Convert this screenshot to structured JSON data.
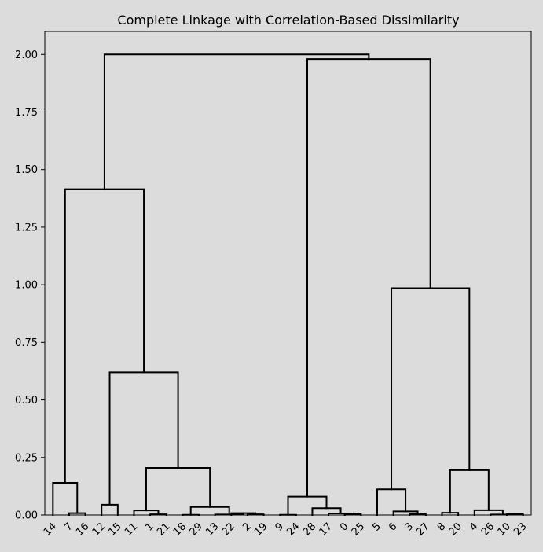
{
  "chart_data": {
    "type": "dendrogram",
    "title": "Complete Linkage with Correlation-Based Dissimilarity",
    "xlabel": "",
    "ylabel": "",
    "ylim": [
      0,
      2.1
    ],
    "yticks": [
      0.0,
      0.25,
      0.5,
      0.75,
      1.0,
      1.25,
      1.5,
      1.75,
      2.0
    ],
    "ytick_labels": [
      "0.00",
      "0.25",
      "0.50",
      "0.75",
      "1.00",
      "1.25",
      "1.50",
      "1.75",
      "2.00"
    ],
    "grid": false,
    "leaf_order": [
      "14",
      "7",
      "16",
      "12",
      "15",
      "11",
      "1",
      "21",
      "18",
      "29",
      "13",
      "22",
      "2",
      "19",
      "9",
      "24",
      "28",
      "17",
      "0",
      "25",
      "5",
      "6",
      "3",
      "27",
      "8",
      "20",
      "4",
      "26",
      "10",
      "23"
    ],
    "merges": [
      {
        "left": [
          1
        ],
        "right": [
          2
        ],
        "height": 0.008
      },
      {
        "left": [
          0
        ],
        "right": [
          1,
          2
        ],
        "height": 0.14
      },
      {
        "left": [
          3
        ],
        "right": [
          4
        ],
        "height": 0.045
      },
      {
        "left": [
          6
        ],
        "right": [
          7
        ],
        "height": 0.003
      },
      {
        "left": [
          5
        ],
        "right": [
          6,
          7
        ],
        "height": 0.02
      },
      {
        "left": [
          8
        ],
        "right": [
          9
        ],
        "height": 0.001
      },
      {
        "left": [
          12
        ],
        "right": [
          13
        ],
        "height": 0.003
      },
      {
        "left": [
          11
        ],
        "right": [
          12,
          13
        ],
        "height": 0.008
      },
      {
        "left": [
          10
        ],
        "right": [
          11,
          12,
          13
        ],
        "height": 0.002
      },
      {
        "left": [
          8,
          9
        ],
        "right": [
          10,
          11,
          12,
          13
        ],
        "height": 0.035
      },
      {
        "left": [
          5,
          6,
          7
        ],
        "right": [
          8,
          9,
          10,
          11,
          12,
          13
        ],
        "height": 0.205
      },
      {
        "left": [
          3,
          4
        ],
        "right": [
          5,
          6,
          7,
          8,
          9,
          10,
          11,
          12,
          13
        ],
        "height": 0.62
      },
      {
        "left": [
          0,
          1,
          2
        ],
        "right": [
          3,
          4,
          5,
          6,
          7,
          8,
          9,
          10,
          11,
          12,
          13
        ],
        "height": 1.415
      },
      {
        "left": [
          14
        ],
        "right": [
          15
        ],
        "height": 0.001
      },
      {
        "left": [
          18
        ],
        "right": [
          19
        ],
        "height": 0.004
      },
      {
        "left": [
          17
        ],
        "right": [
          18,
          19
        ],
        "height": 0.007
      },
      {
        "left": [
          16
        ],
        "right": [
          17,
          18,
          19
        ],
        "height": 0.03
      },
      {
        "left": [
          14,
          15
        ],
        "right": [
          16,
          17,
          18,
          19
        ],
        "height": 0.08
      },
      {
        "left": [
          22
        ],
        "right": [
          23
        ],
        "height": 0.004
      },
      {
        "left": [
          21
        ],
        "right": [
          22,
          23
        ],
        "height": 0.016
      },
      {
        "left": [
          20
        ],
        "right": [
          21,
          22,
          23
        ],
        "height": 0.112
      },
      {
        "left": [
          24
        ],
        "right": [
          25
        ],
        "height": 0.01
      },
      {
        "left": [
          28
        ],
        "right": [
          29
        ],
        "height": 0.004
      },
      {
        "left": [
          27
        ],
        "right": [
          28,
          29
        ],
        "height": 0.002
      },
      {
        "left": [
          26
        ],
        "right": [
          27,
          28,
          29
        ],
        "height": 0.021
      },
      {
        "left": [
          24,
          25
        ],
        "right": [
          26,
          27,
          28,
          29
        ],
        "height": 0.195
      },
      {
        "left": [
          20,
          21,
          22,
          23
        ],
        "right": [
          24,
          25,
          26,
          27,
          28,
          29
        ],
        "height": 0.985
      },
      {
        "left": [
          14,
          15,
          16,
          17,
          18,
          19
        ],
        "right": [
          20,
          21,
          22,
          23,
          24,
          25,
          26,
          27,
          28,
          29
        ],
        "height": 1.98
      },
      {
        "left": [
          0,
          1,
          2,
          3,
          4,
          5,
          6,
          7,
          8,
          9,
          10,
          11,
          12,
          13
        ],
        "right": [
          14,
          15,
          16,
          17,
          18,
          19,
          20,
          21,
          22,
          23,
          24,
          25,
          26,
          27,
          28,
          29
        ],
        "height": 2.0
      }
    ]
  }
}
